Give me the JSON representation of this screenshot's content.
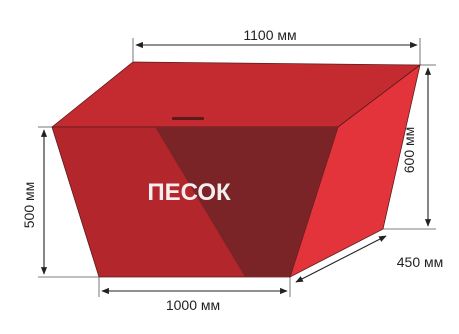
{
  "product": {
    "label": "ПЕСОК",
    "colors": {
      "front_face": "#b3262b",
      "front_shadow": "#7a2427",
      "side_face": "#e3343b",
      "top_face": "#c42b31",
      "outline": "#5c1a1c",
      "dimension_line": "#222222"
    }
  },
  "dimensions": {
    "top_length": "1100 мм",
    "bottom_length": "1000 мм",
    "front_height": "500 мм",
    "back_height": "600 мм",
    "depth": "450 мм"
  }
}
